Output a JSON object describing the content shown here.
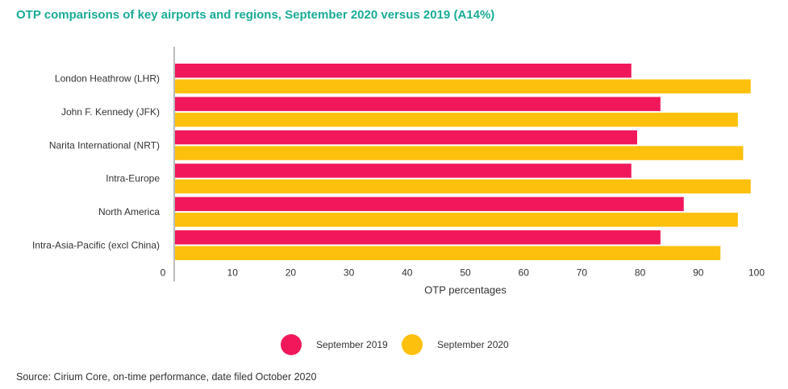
{
  "chart_data": {
    "type": "bar",
    "orientation": "horizontal",
    "title": "OTP comparisons of key airports and regions, September 2020 versus 2019 (A14%)",
    "xlabel": "OTP percentages",
    "ylabel": "",
    "xlim": [
      0,
      100
    ],
    "xticks": [
      0,
      10,
      20,
      30,
      40,
      50,
      60,
      70,
      80,
      90,
      100
    ],
    "grid": false,
    "legend_position": "bottom",
    "categories": [
      "London Heathrow (LHR)",
      "John F. Kennedy (JFK)",
      "Narita International (NRT)",
      "Intra-Europe",
      "North America",
      "Intra-Asia-Pacific (excl China)"
    ],
    "series": [
      {
        "name": "September 2019",
        "color": "#f0185a",
        "values": [
          78.5,
          83.5,
          79.5,
          78.5,
          87.5,
          83.5
        ]
      },
      {
        "name": "September 2020",
        "color": "#fdc10d",
        "values": [
          99,
          96.8,
          97.7,
          99,
          96.8,
          93.8
        ]
      }
    ],
    "source": "Source: Cirium Core, on-time performance, date filed October 2020"
  }
}
